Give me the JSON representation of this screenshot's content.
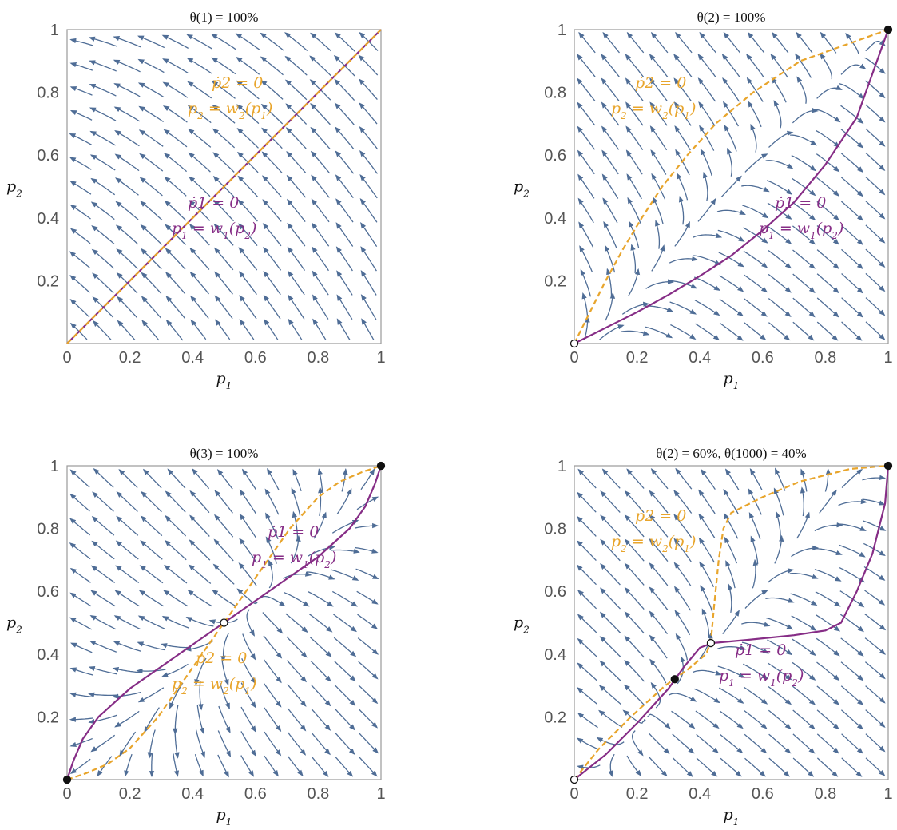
{
  "chart_data": [
    {
      "type": "streamplot",
      "title": "θ(1) = 100%",
      "xlabel": "p1",
      "ylabel": "p2",
      "xlim": [
        0,
        1
      ],
      "ylim": [
        0,
        1
      ],
      "xticks": [
        "0",
        "0.2",
        "0.4",
        "0.6",
        "0.8",
        "1"
      ],
      "yticks": [
        "0.2",
        "0.4",
        "0.6",
        "0.8",
        "1"
      ],
      "colors": {
        "stream": "#4f6d96",
        "p1_nullcline": "#862d86",
        "p2_nullcline": "#e8a52c",
        "frame": "#9a9a9a"
      },
      "p1_nullcline": {
        "label_rate": "ṗ1 = 0",
        "label_fn": "p1 = w1(p2)",
        "points": [
          [
            0,
            0
          ],
          [
            0.25,
            0.25
          ],
          [
            0.5,
            0.5
          ],
          [
            0.75,
            0.75
          ],
          [
            1,
            1
          ]
        ]
      },
      "p2_nullcline": {
        "label_rate": "ṗ2 = 0",
        "label_fn": "p2 = w2(p1)",
        "points": [
          [
            0,
            0
          ],
          [
            0.25,
            0.25
          ],
          [
            0.5,
            0.5
          ],
          [
            0.75,
            0.75
          ],
          [
            1,
            1
          ]
        ]
      },
      "equilibria": []
    },
    {
      "type": "streamplot",
      "title": "θ(2) = 100%",
      "xlabel": "p1",
      "ylabel": "p2",
      "xlim": [
        0,
        1
      ],
      "ylim": [
        0,
        1
      ],
      "xticks": [
        "0",
        "0.2",
        "0.4",
        "0.6",
        "0.8",
        "1"
      ],
      "yticks": [
        "0.2",
        "0.4",
        "0.6",
        "0.8",
        "1"
      ],
      "colors": {
        "stream": "#4f6d96",
        "p1_nullcline": "#862d86",
        "p2_nullcline": "#e8a52c",
        "frame": "#9a9a9a"
      },
      "p1_nullcline": {
        "label_rate": "ṗ1 = 0",
        "label_fn": "p1 = w1(p2)",
        "points": [
          [
            0,
            0
          ],
          [
            0.1,
            0.05
          ],
          [
            0.2,
            0.1
          ],
          [
            0.3,
            0.155
          ],
          [
            0.4,
            0.215
          ],
          [
            0.5,
            0.28
          ],
          [
            0.6,
            0.36
          ],
          [
            0.7,
            0.45
          ],
          [
            0.8,
            0.57
          ],
          [
            0.9,
            0.72
          ],
          [
            1,
            1
          ]
        ]
      },
      "p2_nullcline": {
        "label_rate": "ṗ2 = 0",
        "label_fn": "p2 = w2(p1)",
        "points": [
          [
            0,
            0
          ],
          [
            0.05,
            0.1
          ],
          [
            0.1,
            0.2
          ],
          [
            0.155,
            0.3
          ],
          [
            0.215,
            0.4
          ],
          [
            0.28,
            0.5
          ],
          [
            0.36,
            0.6
          ],
          [
            0.45,
            0.7
          ],
          [
            0.57,
            0.8
          ],
          [
            0.72,
            0.9
          ],
          [
            1,
            1
          ]
        ]
      },
      "equilibria": [
        {
          "x": 0,
          "y": 0,
          "stable": false
        },
        {
          "x": 1,
          "y": 1,
          "stable": true
        }
      ]
    },
    {
      "type": "streamplot",
      "title": "θ(3) = 100%",
      "xlabel": "p1",
      "ylabel": "p2",
      "xlim": [
        0,
        1
      ],
      "ylim": [
        0,
        1
      ],
      "xticks": [
        "0",
        "0.2",
        "0.4",
        "0.6",
        "0.8",
        "1"
      ],
      "yticks": [
        "0.2",
        "0.4",
        "0.6",
        "0.8",
        "1"
      ],
      "colors": {
        "stream": "#4f6d96",
        "p1_nullcline": "#862d86",
        "p2_nullcline": "#e8a52c",
        "frame": "#9a9a9a"
      },
      "p1_nullcline": {
        "label_rate": "ṗ1 = 0",
        "label_fn": "p1 = w1(p2)",
        "points": [
          [
            0,
            0
          ],
          [
            0.02,
            0.06
          ],
          [
            0.05,
            0.13
          ],
          [
            0.1,
            0.2
          ],
          [
            0.2,
            0.29
          ],
          [
            0.3,
            0.36
          ],
          [
            0.4,
            0.43
          ],
          [
            0.5,
            0.5
          ],
          [
            0.6,
            0.57
          ],
          [
            0.7,
            0.64
          ],
          [
            0.8,
            0.71
          ],
          [
            0.9,
            0.8
          ],
          [
            0.95,
            0.87
          ],
          [
            0.98,
            0.94
          ],
          [
            1,
            1
          ]
        ]
      },
      "p2_nullcline": {
        "label_rate": "ṗ2 = 0",
        "label_fn": "p2 = w2(p1)",
        "points": [
          [
            0,
            0
          ],
          [
            0.06,
            0.02
          ],
          [
            0.13,
            0.05
          ],
          [
            0.2,
            0.1
          ],
          [
            0.29,
            0.2
          ],
          [
            0.36,
            0.3
          ],
          [
            0.43,
            0.4
          ],
          [
            0.5,
            0.5
          ],
          [
            0.57,
            0.6
          ],
          [
            0.64,
            0.7
          ],
          [
            0.71,
            0.8
          ],
          [
            0.8,
            0.9
          ],
          [
            0.87,
            0.95
          ],
          [
            0.94,
            0.98
          ],
          [
            1,
            1
          ]
        ]
      },
      "equilibria": [
        {
          "x": 0,
          "y": 0,
          "stable": true
        },
        {
          "x": 0.5,
          "y": 0.5,
          "stable": false
        },
        {
          "x": 1,
          "y": 1,
          "stable": true
        }
      ]
    },
    {
      "type": "streamplot",
      "title": "θ(2) = 60%, θ(1000) = 40%",
      "xlabel": "p1",
      "ylabel": "p2",
      "xlim": [
        0,
        1
      ],
      "ylim": [
        0,
        1
      ],
      "xticks": [
        "0",
        "0.2",
        "0.4",
        "0.6",
        "0.8",
        "1"
      ],
      "yticks": [
        "0.2",
        "0.4",
        "0.6",
        "0.8",
        "1"
      ],
      "colors": {
        "stream": "#4f6d96",
        "p1_nullcline": "#862d86",
        "p2_nullcline": "#e8a52c",
        "frame": "#9a9a9a"
      },
      "p1_nullcline": {
        "label_rate": "ṗ1 = 0",
        "label_fn": "p1 = w1(p2)",
        "points": [
          [
            0,
            0
          ],
          [
            0.1,
            0.08
          ],
          [
            0.2,
            0.18
          ],
          [
            0.3,
            0.29
          ],
          [
            0.35,
            0.36
          ],
          [
            0.4,
            0.42
          ],
          [
            0.44,
            0.435
          ],
          [
            0.55,
            0.445
          ],
          [
            0.7,
            0.46
          ],
          [
            0.8,
            0.475
          ],
          [
            0.85,
            0.5
          ],
          [
            0.9,
            0.6
          ],
          [
            0.95,
            0.72
          ],
          [
            0.99,
            0.88
          ],
          [
            1,
            1
          ]
        ]
      },
      "p2_nullcline": {
        "label_rate": "ṗ2 = 0",
        "label_fn": "p2 = w2(p1)",
        "points": [
          [
            0,
            0
          ],
          [
            0.08,
            0.1
          ],
          [
            0.18,
            0.2
          ],
          [
            0.29,
            0.3
          ],
          [
            0.36,
            0.35
          ],
          [
            0.42,
            0.4
          ],
          [
            0.435,
            0.44
          ],
          [
            0.445,
            0.55
          ],
          [
            0.46,
            0.7
          ],
          [
            0.475,
            0.8
          ],
          [
            0.5,
            0.85
          ],
          [
            0.6,
            0.9
          ],
          [
            0.72,
            0.95
          ],
          [
            0.88,
            0.99
          ],
          [
            1,
            1
          ]
        ]
      },
      "equilibria": [
        {
          "x": 0,
          "y": 0,
          "stable": false
        },
        {
          "x": 0.32,
          "y": 0.32,
          "stable": true
        },
        {
          "x": 0.435,
          "y": 0.435,
          "stable": false
        },
        {
          "x": 1,
          "y": 1,
          "stable": true
        }
      ]
    }
  ]
}
